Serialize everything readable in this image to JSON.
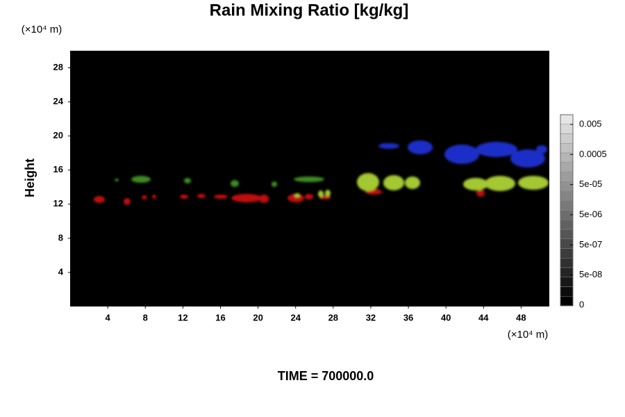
{
  "chart_data": {
    "type": "field",
    "title": "Rain Mixing Ratio [kg/kg]",
    "ylabel": "Height",
    "yunit": "(×10⁴ m)",
    "xunit": "(×10⁴ m)",
    "footer": "TIME = 700000.0",
    "xlim": [
      0,
      51
    ],
    "xticks": [
      4,
      8,
      12,
      16,
      20,
      24,
      28,
      32,
      36,
      40,
      44,
      48
    ],
    "ylim": [
      0,
      30
    ],
    "yticks": [
      4,
      8,
      12,
      16,
      20,
      24,
      28
    ],
    "colorbar": {
      "scale": "log",
      "ticks": [
        {
          "value": 0.005,
          "label": "0.005"
        },
        {
          "value": 0.0005,
          "label": "0.0005"
        },
        {
          "value": 5e-05,
          "label": "5e-05"
        },
        {
          "value": 5e-06,
          "label": "5e-06"
        },
        {
          "value": 5e-07,
          "label": "5e-07"
        },
        {
          "value": 5e-08,
          "label": "5e-08"
        },
        0
      ]
    }
  }
}
